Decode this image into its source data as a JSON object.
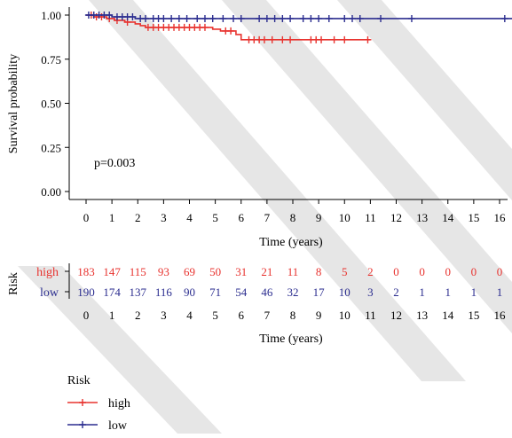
{
  "chart_data": {
    "type": "line",
    "subtype": "kaplan-meier",
    "title": "",
    "xlabel": "Time (years)",
    "ylabel": "Survival probability",
    "xlim": [
      -0.3,
      16.5
    ],
    "ylim": [
      0,
      1
    ],
    "x_ticks": [
      0,
      1,
      2,
      3,
      4,
      5,
      6,
      7,
      8,
      9,
      10,
      11,
      12,
      13,
      14,
      15,
      16
    ],
    "y_ticks": [
      "0.00",
      "0.25",
      "0.50",
      "0.75",
      "1.00"
    ],
    "grid": false,
    "annotation": "p=0.003",
    "colors": {
      "high": "#e8332f",
      "low": "#2b2d8f"
    },
    "series": [
      {
        "name": "high",
        "color": "#e8332f",
        "steps": [
          [
            0,
            1.0
          ],
          [
            0.3,
            0.99
          ],
          [
            0.8,
            0.98
          ],
          [
            1.1,
            0.97
          ],
          [
            1.5,
            0.96
          ],
          [
            1.9,
            0.95
          ],
          [
            2.1,
            0.94
          ],
          [
            2.3,
            0.93
          ],
          [
            4.9,
            0.92
          ],
          [
            5.2,
            0.91
          ],
          [
            5.8,
            0.89
          ],
          [
            6.0,
            0.86
          ],
          [
            11.0,
            0.86
          ]
        ],
        "censor_x": [
          0.2,
          0.4,
          0.6,
          0.9,
          1.2,
          1.6,
          2.4,
          2.6,
          2.8,
          3.0,
          3.2,
          3.4,
          3.6,
          3.8,
          4.0,
          4.2,
          4.4,
          4.6,
          5.4,
          5.6,
          6.3,
          6.5,
          6.7,
          6.9,
          7.2,
          7.6,
          7.9,
          8.7,
          8.9,
          9.1,
          9.6,
          10.0,
          10.9
        ]
      },
      {
        "name": "low",
        "color": "#2b2d8f",
        "steps": [
          [
            0,
            1.0
          ],
          [
            1.0,
            0.99
          ],
          [
            1.9,
            0.98
          ],
          [
            16.5,
            0.98
          ]
        ],
        "censor_x": [
          0.1,
          0.3,
          0.5,
          0.7,
          0.9,
          1.2,
          1.4,
          1.6,
          1.8,
          2.1,
          2.3,
          2.6,
          2.8,
          3.0,
          3.3,
          3.6,
          3.9,
          4.3,
          4.6,
          4.9,
          5.3,
          5.7,
          6.0,
          6.7,
          7.0,
          7.3,
          7.6,
          7.9,
          8.4,
          8.7,
          9.0,
          9.4,
          10.0,
          10.3,
          10.6,
          11.4,
          12.6,
          16.2
        ]
      }
    ]
  },
  "risk_table": {
    "title": "Risk",
    "xlabel": "Time (years)",
    "rows": [
      {
        "name": "high",
        "color": "#e8332f",
        "values": [
          183,
          147,
          115,
          93,
          69,
          50,
          31,
          21,
          11,
          8,
          5,
          2,
          0,
          0,
          0,
          0,
          0
        ]
      },
      {
        "name": "low",
        "color": "#2b2d8f",
        "values": [
          190,
          174,
          137,
          116,
          90,
          71,
          54,
          46,
          32,
          17,
          10,
          3,
          2,
          1,
          1,
          1,
          1
        ]
      }
    ]
  },
  "legend": {
    "title": "Risk",
    "placement": "bottom-left",
    "items": [
      {
        "label": "high",
        "color": "#e8332f"
      },
      {
        "label": "low",
        "color": "#2b2d8f"
      }
    ]
  }
}
